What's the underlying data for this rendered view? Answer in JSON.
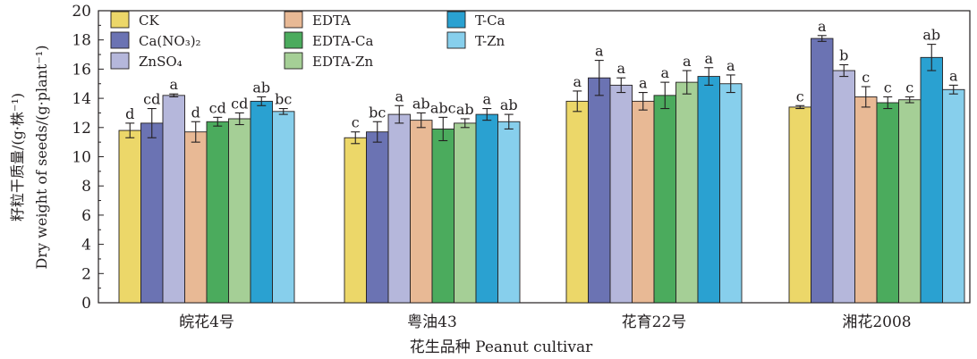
{
  "chart_data": {
    "type": "bar",
    "xlabel": "花生品种 Peanut cultivar",
    "ylabel_cn": "籽粒干质量/(g·株⁻¹)",
    "ylabel_en": "Dry weight of seeds/(g·plant⁻¹)",
    "ylim": [
      0,
      20
    ],
    "yticks": [
      "0",
      "2",
      "4",
      "6",
      "8",
      "10",
      "12",
      "14",
      "16",
      "18",
      "20"
    ],
    "categories": [
      "皖花4号",
      "粤油43",
      "花育22号",
      "湘花2008"
    ],
    "legend_position": "top-left",
    "series": [
      {
        "name": "CK",
        "color": "#ecd769",
        "values": [
          11.8,
          11.3,
          13.8,
          13.4
        ],
        "errors": [
          0.5,
          0.4,
          0.7,
          0.1
        ],
        "letters": [
          "d",
          "c",
          "a",
          "c"
        ]
      },
      {
        "name": "Ca(NO₃)₂",
        "color": "#6b73b3",
        "values": [
          12.3,
          11.7,
          15.4,
          18.1
        ],
        "errors": [
          1.0,
          0.7,
          1.2,
          0.2
        ],
        "letters": [
          "cd",
          "bc",
          "a",
          "a"
        ]
      },
      {
        "name": "ZnSO₄",
        "color": "#b5b7db",
        "values": [
          14.2,
          12.9,
          14.9,
          15.9
        ],
        "errors": [
          0.1,
          0.6,
          0.5,
          0.4
        ],
        "letters": [
          "a",
          "a",
          "a",
          "b"
        ]
      },
      {
        "name": "EDTA",
        "color": "#e8b995",
        "values": [
          11.7,
          12.5,
          13.8,
          14.1
        ],
        "errors": [
          0.7,
          0.5,
          0.6,
          0.7
        ],
        "letters": [
          "d",
          "ab",
          "a",
          "c"
        ]
      },
      {
        "name": "EDTA-Ca",
        "color": "#4bab5d",
        "values": [
          12.4,
          11.9,
          14.2,
          13.7
        ],
        "errors": [
          0.3,
          0.8,
          0.9,
          0.4
        ],
        "letters": [
          "cd",
          "abc",
          "a",
          "c"
        ]
      },
      {
        "name": "EDTA-Zn",
        "color": "#a5cf96",
        "values": [
          12.6,
          12.3,
          15.1,
          13.9
        ],
        "errors": [
          0.4,
          0.3,
          0.8,
          0.2
        ],
        "letters": [
          "cd",
          "ab",
          "a",
          "c"
        ]
      },
      {
        "name": "T-Ca",
        "color": "#2aa1d1",
        "values": [
          13.8,
          12.9,
          15.5,
          16.8
        ],
        "errors": [
          0.3,
          0.4,
          0.6,
          0.9
        ],
        "letters": [
          "ab",
          "a",
          "a",
          "ab"
        ]
      },
      {
        "name": "T-Zn",
        "color": "#87cfec",
        "values": [
          13.1,
          12.4,
          15.0,
          14.6
        ],
        "errors": [
          0.2,
          0.5,
          0.6,
          0.3
        ],
        "letters": [
          "bc",
          "ab",
          "a",
          "a"
        ]
      }
    ]
  }
}
